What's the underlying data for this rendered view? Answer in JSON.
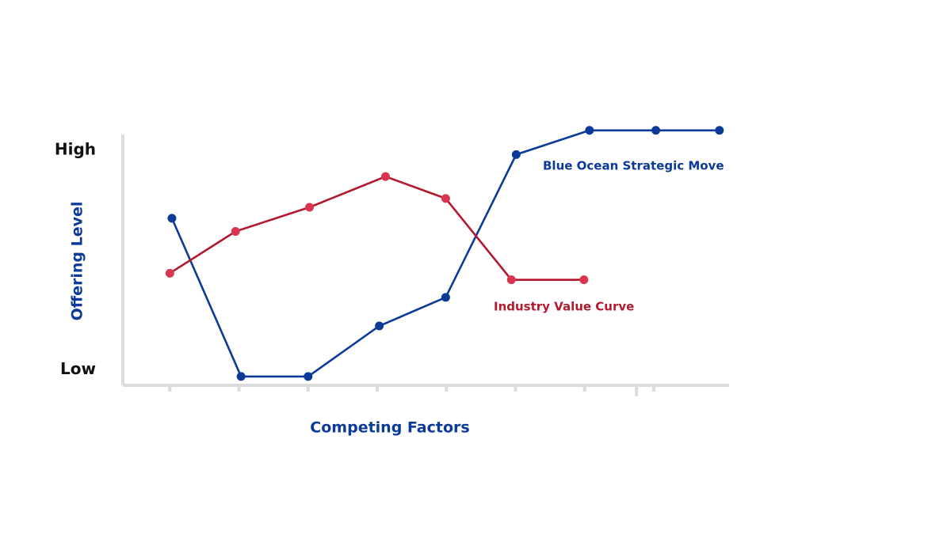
{
  "chart_data": {
    "type": "line",
    "y_label": "Offering Level",
    "x_label": "Competing Factors",
    "xlim": [
      0.32,
      9.09
    ],
    "ylim": [
      -0.7,
      11
    ],
    "xticks": [
      1,
      2,
      3,
      4,
      5,
      6,
      7,
      7.75,
      8
    ],
    "yticks": [
      {
        "value": 0,
        "label": "Low"
      },
      {
        "value": 10,
        "label": "High"
      }
    ],
    "series": [
      {
        "name": "Blue Ocean Strategic Move",
        "color": "#0b3a99",
        "x": [
          1.03,
          2.03,
          3,
          4.03,
          4.99,
          6.01,
          7.07,
          8.03,
          8.95
        ],
        "values": [
          6.9,
          -0.3,
          -0.3,
          2.0,
          3.3,
          9.8,
          10.9,
          10.9,
          10.9
        ]
      },
      {
        "name": "Industry Value Curve",
        "color": "#b3182f",
        "x": [
          1,
          1.95,
          3.02,
          4.12,
          4.99,
          5.94,
          6.99
        ],
        "values": [
          4.4,
          6.3,
          7.4,
          8.8,
          7.8,
          4.1,
          4.1
        ]
      }
    ]
  }
}
